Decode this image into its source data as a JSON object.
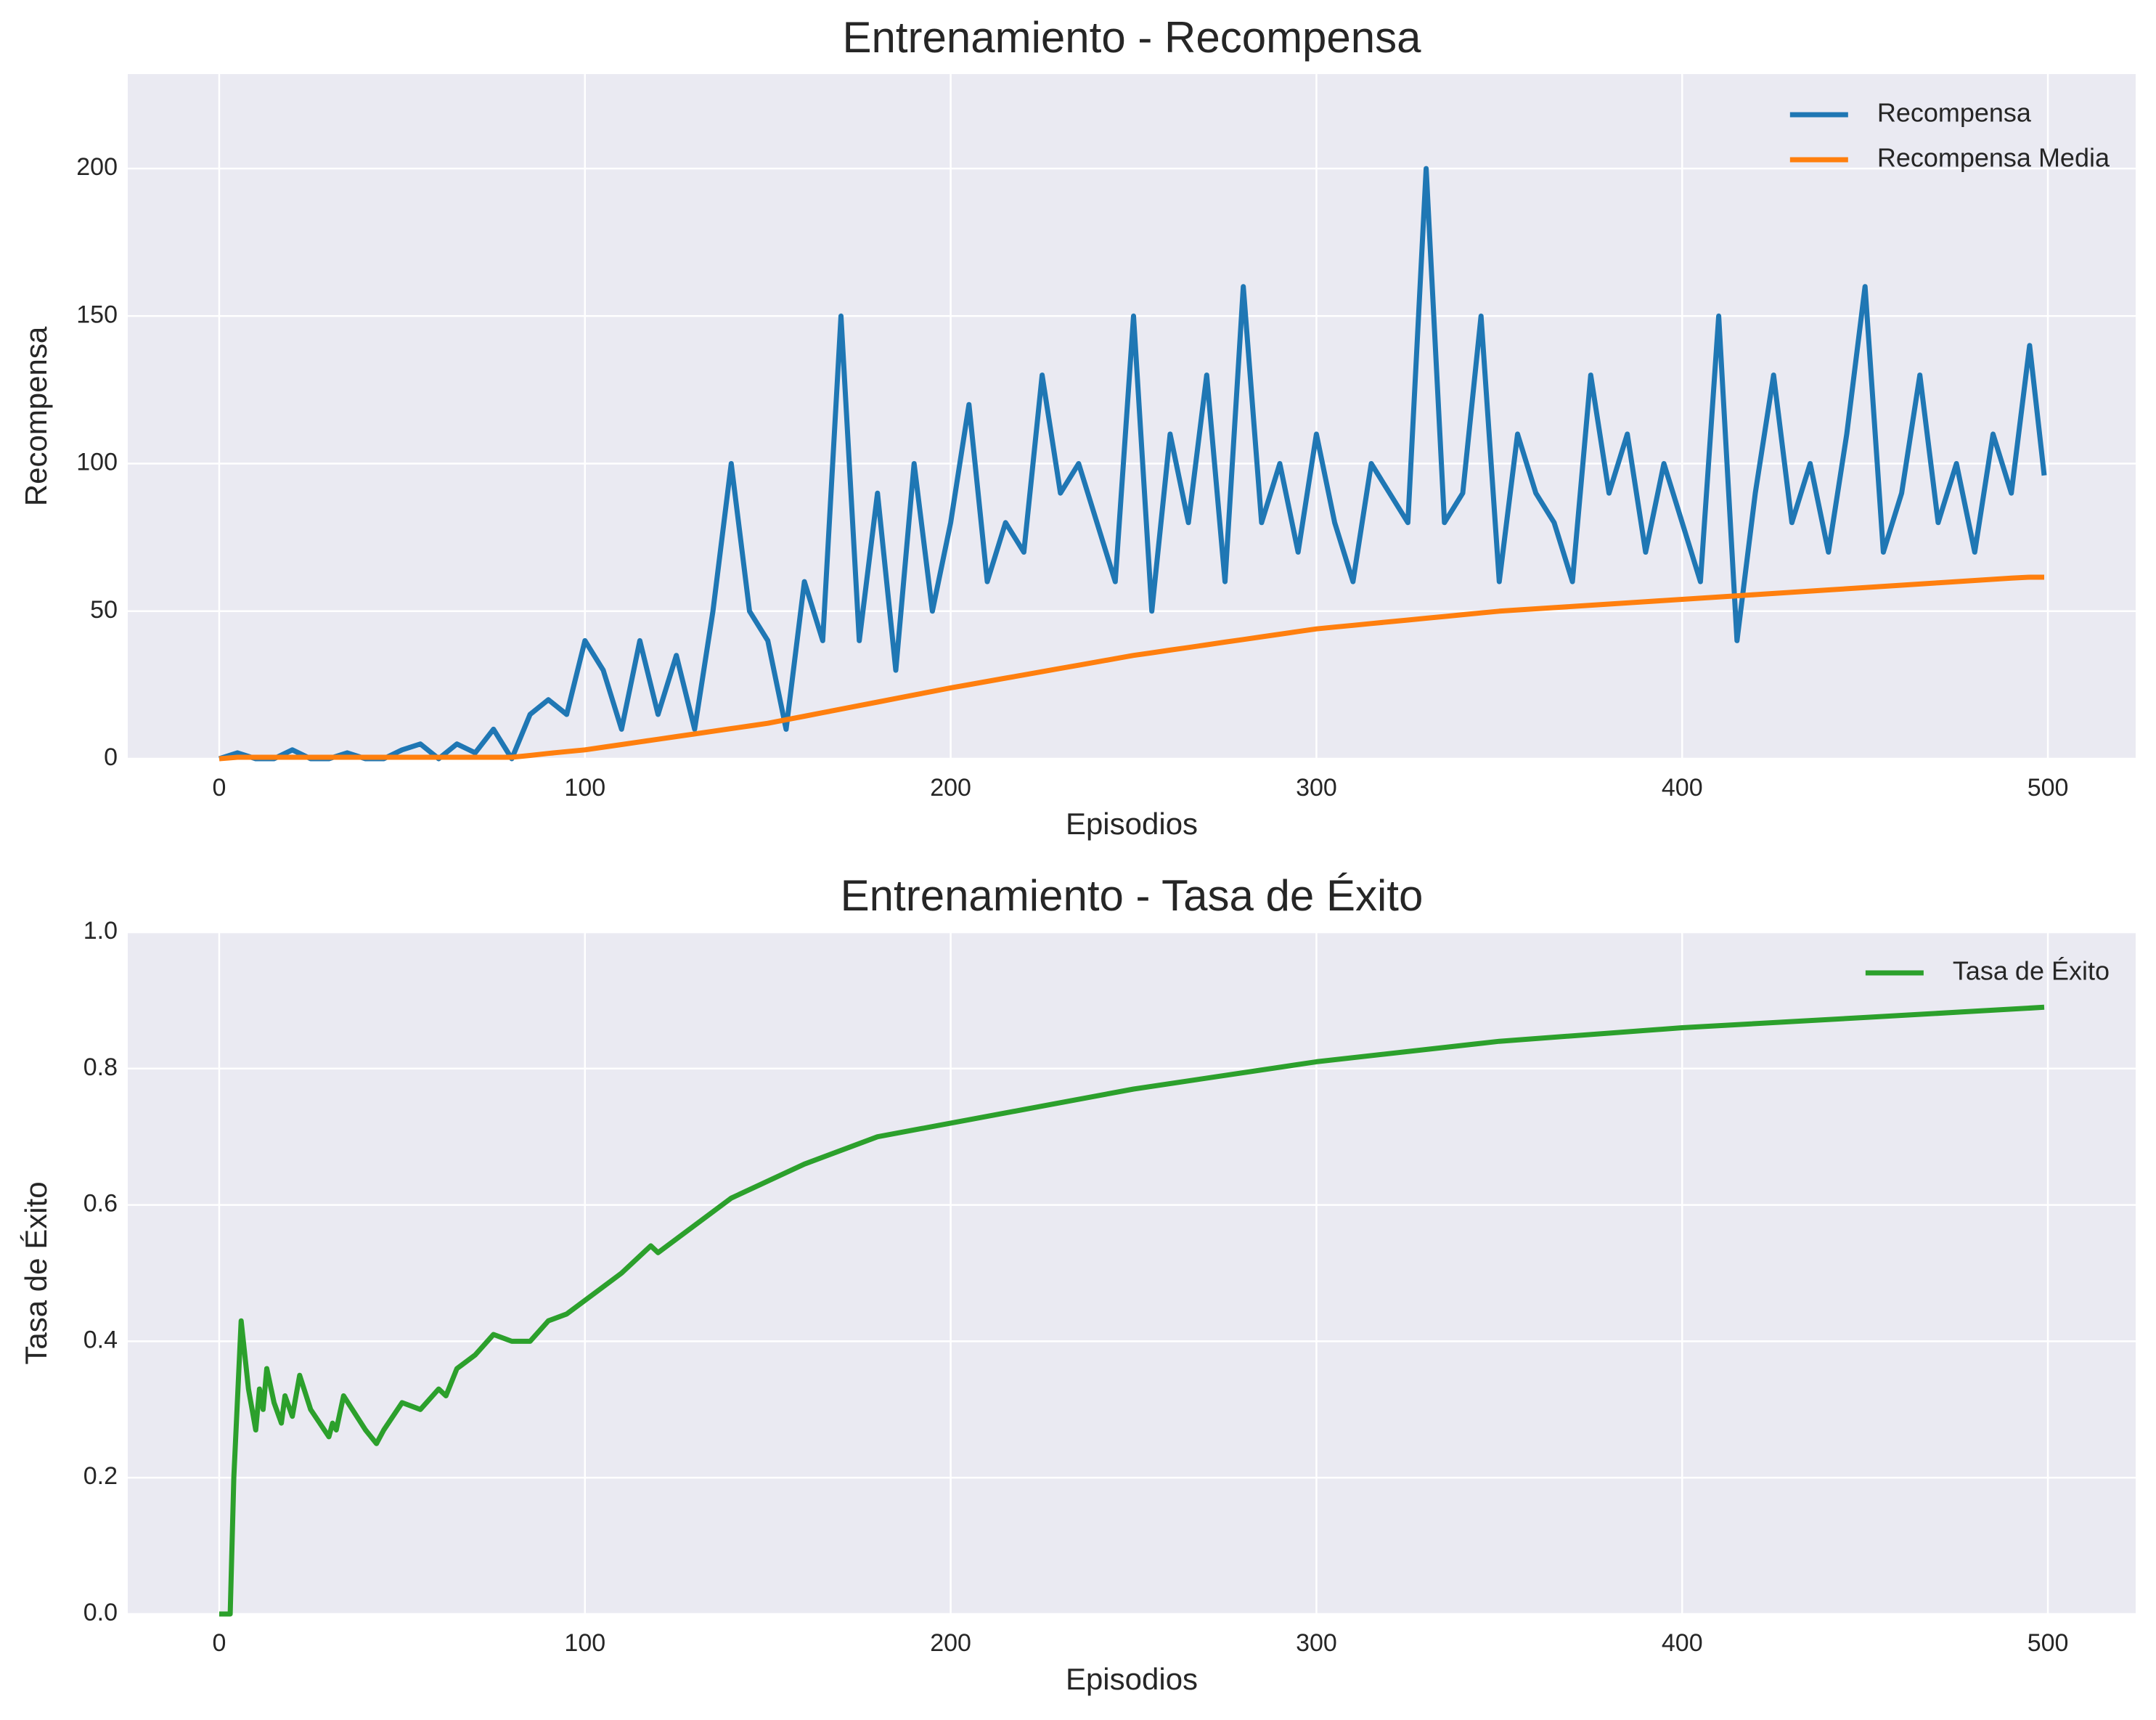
{
  "chart_data": [
    {
      "type": "line",
      "title": "Entrenamiento - Recompensa",
      "xlabel": "Episodios",
      "ylabel": "Recompensa",
      "x": [
        0,
        5,
        10,
        15,
        20,
        25,
        30,
        35,
        40,
        45,
        50,
        55,
        60,
        65,
        70,
        75,
        80,
        85,
        90,
        95,
        100,
        105,
        110,
        115,
        120,
        125,
        130,
        135,
        140,
        145,
        150,
        155,
        160,
        165,
        170,
        175,
        180,
        185,
        190,
        195,
        200,
        205,
        210,
        215,
        220,
        225,
        230,
        235,
        240,
        245,
        250,
        255,
        260,
        265,
        270,
        275,
        280,
        285,
        290,
        295,
        300,
        305,
        310,
        315,
        320,
        325,
        330,
        335,
        340,
        345,
        350,
        355,
        360,
        365,
        370,
        375,
        380,
        385,
        390,
        395,
        400,
        405,
        410,
        415,
        420,
        425,
        430,
        435,
        440,
        445,
        450,
        455,
        460,
        465,
        470,
        475,
        480,
        485,
        490,
        495,
        499
      ],
      "series": [
        {
          "name": "Recompensa",
          "color": "#1f77b4",
          "values": [
            0,
            2,
            0,
            0,
            3,
            0,
            0,
            2,
            0,
            0,
            3,
            5,
            0,
            5,
            2,
            10,
            0,
            15,
            20,
            15,
            40,
            30,
            10,
            40,
            15,
            35,
            10,
            50,
            100,
            50,
            40,
            10,
            60,
            40,
            150,
            40,
            90,
            30,
            100,
            50,
            80,
            120,
            60,
            80,
            70,
            130,
            90,
            100,
            80,
            60,
            150,
            50,
            110,
            80,
            130,
            60,
            160,
            80,
            100,
            70,
            110,
            80,
            60,
            100,
            90,
            80,
            200,
            80,
            90,
            150,
            60,
            110,
            90,
            80,
            60,
            130,
            90,
            110,
            70,
            100,
            80,
            60,
            150,
            40,
            90,
            130,
            80,
            100,
            70,
            110,
            160,
            70,
            90,
            130,
            80,
            100,
            70,
            110,
            90,
            140,
            96
          ]
        },
        {
          "name": "Recompensa Media",
          "color": "#ff7f0e",
          "values": [
            0,
            0.5,
            0.5,
            0.5,
            0.5,
            0.5,
            0.5,
            0.5,
            0.5,
            0.5,
            0.5,
            0.5,
            0.5,
            0.5,
            0.5,
            0.5,
            0.5,
            1.1,
            1.8,
            2.4,
            3,
            3.9,
            4.8,
            5.7,
            6.6,
            7.5,
            8.4,
            9.3,
            10.2,
            11.1,
            12,
            13.2,
            14.4,
            15.6,
            16.8,
            18,
            19.2,
            20.4,
            21.6,
            22.8,
            24,
            25.1,
            26.2,
            27.3,
            28.4,
            29.5,
            30.6,
            31.7,
            32.8,
            33.9,
            35,
            35.9,
            36.8,
            37.7,
            38.6,
            39.5,
            40.4,
            41.3,
            42.2,
            43.1,
            44,
            44.6,
            45.2,
            45.8,
            46.4,
            47,
            47.6,
            48.2,
            48.8,
            49.4,
            50,
            50.4,
            50.8,
            51.2,
            51.6,
            52,
            52.4,
            52.8,
            53.2,
            53.6,
            54,
            54.4,
            54.8,
            55.2,
            55.6,
            56,
            56.4,
            56.8,
            57.2,
            57.6,
            58,
            58.4,
            58.8,
            59.2,
            59.6,
            60,
            60.4,
            60.8,
            61.2,
            61.5,
            61.5
          ]
        }
      ],
      "xlim": [
        -25,
        524
      ],
      "xticks": [
        0,
        100,
        200,
        300,
        400,
        500
      ],
      "ylim": [
        0,
        232
      ],
      "yticks": [
        0,
        50,
        100,
        150,
        200
      ],
      "grid": true,
      "legend": "upper right"
    },
    {
      "type": "line",
      "title": "Entrenamiento - Tasa de Éxito",
      "xlabel": "Episodios",
      "ylabel": "Tasa de Éxito",
      "x": [
        0,
        3,
        4,
        6,
        8,
        10,
        11,
        12,
        13,
        15,
        17,
        18,
        20,
        22,
        25,
        30,
        31,
        32,
        34,
        40,
        43,
        45,
        50,
        55,
        60,
        62,
        65,
        70,
        75,
        80,
        85,
        90,
        95,
        100,
        110,
        118,
        120,
        140,
        160,
        180,
        200,
        250,
        300,
        350,
        400,
        450,
        499
      ],
      "series": [
        {
          "name": "Tasa de Éxito",
          "color": "#2ca02c",
          "values": [
            0,
            0,
            0.2,
            0.43,
            0.33,
            0.27,
            0.33,
            0.3,
            0.36,
            0.31,
            0.28,
            0.32,
            0.29,
            0.35,
            0.3,
            0.26,
            0.28,
            0.27,
            0.32,
            0.27,
            0.25,
            0.27,
            0.31,
            0.3,
            0.33,
            0.32,
            0.36,
            0.38,
            0.41,
            0.4,
            0.4,
            0.43,
            0.44,
            0.46,
            0.5,
            0.54,
            0.53,
            0.61,
            0.66,
            0.7,
            0.72,
            0.77,
            0.81,
            0.84,
            0.86,
            0.875,
            0.89
          ]
        }
      ],
      "xlim": [
        -25,
        524
      ],
      "xticks": [
        0,
        100,
        200,
        300,
        400,
        500
      ],
      "ylim": [
        0,
        1
      ],
      "yticks": [
        {
          "value": 0,
          "label": "0.0"
        },
        0.2,
        0.4,
        0.6,
        0.8,
        {
          "value": 1,
          "label": "1.0"
        }
      ],
      "grid": true,
      "legend": "upper right"
    }
  ]
}
